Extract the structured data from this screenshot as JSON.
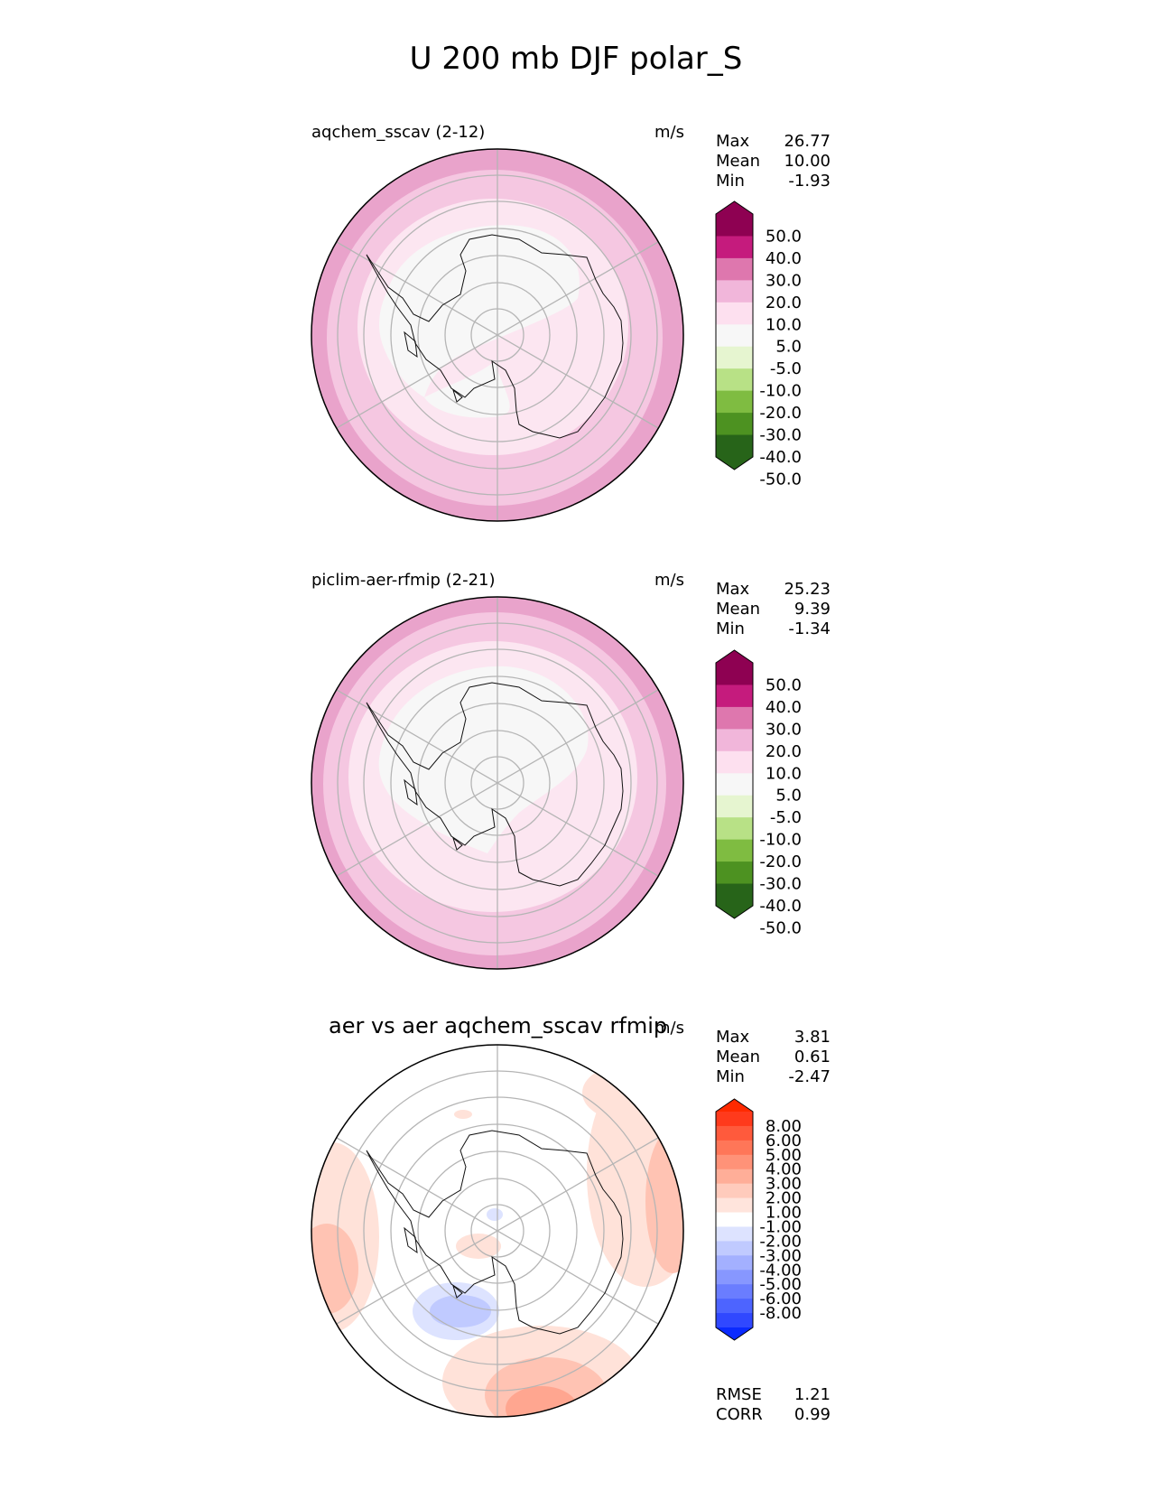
{
  "figure": {
    "title": "U 200 mb DJF polar_S"
  },
  "panels": [
    {
      "name": "test",
      "title": "aqchem_sscav (2-12)",
      "units": "m/s",
      "stats": [
        {
          "label": "Max",
          "value": "26.77"
        },
        {
          "label": "Mean",
          "value": "10.00"
        },
        {
          "label": "Min",
          "value": "-1.93"
        }
      ],
      "colorbar": {
        "labels": [
          "50.0",
          "40.0",
          "30.0",
          "20.0",
          "10.0",
          "5.0",
          "-5.0",
          "-10.0",
          "-20.0",
          "-30.0",
          "-40.0",
          "-50.0"
        ],
        "colors_top_to_bottom": [
          "#8e0152",
          "#c51b7d",
          "#de77ae",
          "#f1b6da",
          "#fde0ef",
          "#f7f7f7",
          "#e6f5d0",
          "#b8e186",
          "#7fbc41",
          "#4d9221",
          "#276419"
        ],
        "extend_max": "#8e0152",
        "extend_min": "#276419"
      },
      "field_colors": {
        "outer": "#e9a3cb",
        "ring2": "#f5c7e1",
        "ring3": "#fce6f1",
        "core": "#f7f7f7"
      }
    },
    {
      "name": "reference",
      "title": "piclim-aer-rfmip (2-21)",
      "units": "m/s",
      "stats": [
        {
          "label": "Max",
          "value": "25.23"
        },
        {
          "label": "Mean",
          "value": "9.39"
        },
        {
          "label": "Min",
          "value": "-1.34"
        }
      ],
      "colorbar": {
        "labels": [
          "50.0",
          "40.0",
          "30.0",
          "20.0",
          "10.0",
          "5.0",
          "-5.0",
          "-10.0",
          "-20.0",
          "-30.0",
          "-40.0",
          "-50.0"
        ],
        "colors_top_to_bottom": [
          "#8e0152",
          "#c51b7d",
          "#de77ae",
          "#f1b6da",
          "#fde0ef",
          "#f7f7f7",
          "#e6f5d0",
          "#b8e186",
          "#7fbc41",
          "#4d9221",
          "#276419"
        ],
        "extend_max": "#8e0152",
        "extend_min": "#276419"
      },
      "field_colors": {
        "outer": "#e9a3cb",
        "ring2": "#f5c7e1",
        "ring3": "#fce6f1",
        "core": "#f7f7f7"
      }
    },
    {
      "name": "difference",
      "title": "aer vs aer aqchem_sscav rfmip",
      "units": "m/s",
      "stats": [
        {
          "label": "Max",
          "value": "3.81"
        },
        {
          "label": "Mean",
          "value": "0.61"
        },
        {
          "label": "Min",
          "value": "-2.47"
        }
      ],
      "extra_stats": [
        {
          "label": "RMSE",
          "value": "1.21"
        },
        {
          "label": "CORR",
          "value": "0.99"
        }
      ],
      "colorbar": {
        "labels": [
          "8.00",
          "6.00",
          "5.00",
          "4.00",
          "3.00",
          "2.00",
          "1.00",
          "-1.00",
          "-2.00",
          "-3.00",
          "-4.00",
          "-5.00",
          "-6.00",
          "-8.00"
        ],
        "colors_top_to_bottom": [
          "#ff3a1c",
          "#ff5a3c",
          "#ff7658",
          "#ff9278",
          "#ffae98",
          "#ffcbbc",
          "#ffe4dc",
          "#ffffff",
          "#dde3ff",
          "#c0caff",
          "#a3b0ff",
          "#8797ff",
          "#6a7dff",
          "#4d64ff",
          "#3048ff"
        ],
        "extend_max": "#ff2a00",
        "extend_min": "#0a2aff"
      },
      "field_colors": {
        "pos1": "#ffe2d9",
        "pos2": "#ffc3b3",
        "pos3": "#ffa690",
        "neg1": "#dde3ff",
        "neg2": "#c0caff"
      }
    }
  ]
}
